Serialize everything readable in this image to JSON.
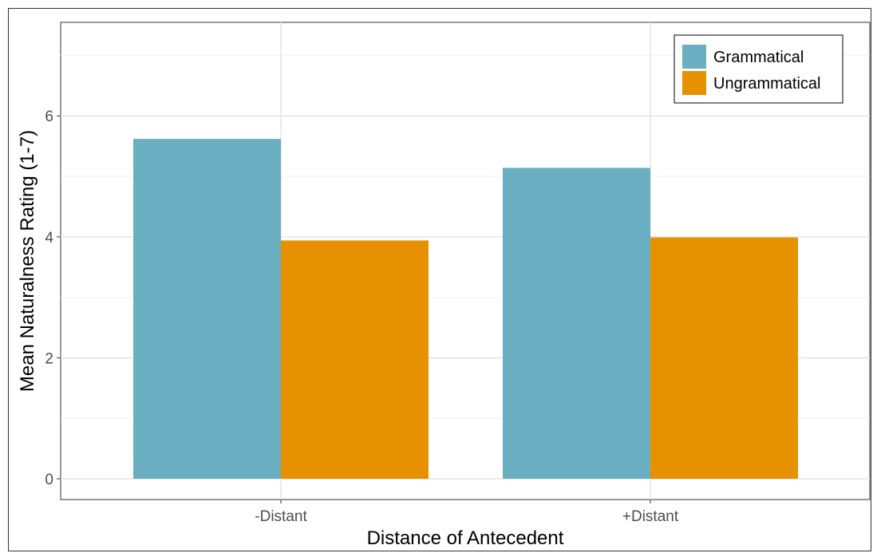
{
  "chart_data": {
    "type": "bar",
    "title": "",
    "xlabel": "Distance of Antecedent",
    "ylabel": "Mean Naturalness Rating (1-7)",
    "categories": [
      "-Distant",
      "+Distant"
    ],
    "series": [
      {
        "name": "Grammatical",
        "values": [
          5.62,
          5.14
        ],
        "color": "#6aafc2"
      },
      {
        "name": "Ungrammatical",
        "values": [
          3.94,
          3.99
        ],
        "color": "#e69100"
      }
    ],
    "ylim": [
      0,
      7
    ],
    "yticks": [
      0,
      2,
      4,
      6
    ],
    "grid": true,
    "legend_position": "top-right"
  }
}
